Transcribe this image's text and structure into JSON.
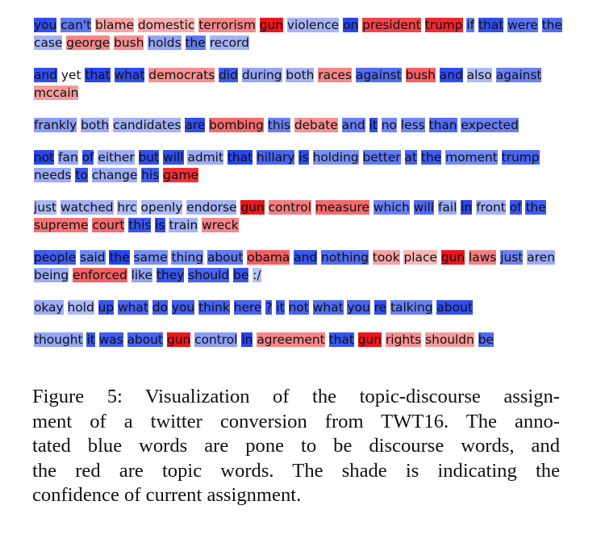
{
  "visualization": {
    "colors": {
      "discourse_strong": "#1f3ff0",
      "discourse_weak": "#c5d0f8",
      "topic_strong": "#f0141b",
      "topic_weak": "#f9d3d2"
    },
    "tweets": [
      {
        "tokens": [
          {
            "t": "you",
            "c": "b",
            "s": 0.9
          },
          {
            "t": "can't",
            "c": "b",
            "s": 0.6
          },
          {
            "t": "blame",
            "c": "r",
            "s": 0.25
          },
          {
            "t": "domestic",
            "c": "r",
            "s": 0.2
          },
          {
            "t": "terrorism",
            "c": "r",
            "s": 0.4
          },
          {
            "t": "gun",
            "c": "r",
            "s": 1.0
          },
          {
            "t": "violence",
            "c": "b",
            "s": 0.2
          },
          {
            "t": "on",
            "c": "b",
            "s": 0.95
          },
          {
            "t": "president",
            "c": "r",
            "s": 0.75
          },
          {
            "t": "trump",
            "c": "r",
            "s": 0.9
          },
          {
            "t": "if",
            "c": "b",
            "s": 0.6
          },
          {
            "t": "that",
            "c": "b",
            "s": 0.9
          },
          {
            "t": "were",
            "c": "b",
            "s": 0.65
          },
          {
            "t": "the",
            "c": "b",
            "s": 0.7
          },
          {
            "t": "case",
            "c": "b",
            "s": 0.2
          },
          {
            "t": "george",
            "c": "r",
            "s": 0.4
          },
          {
            "t": "bush",
            "c": "r",
            "s": 0.35
          },
          {
            "t": "holds",
            "c": "b",
            "s": 0.3
          },
          {
            "t": "the",
            "c": "b",
            "s": 0.6
          },
          {
            "t": "record",
            "c": "b",
            "s": 0.2
          }
        ]
      },
      {
        "tokens": [
          {
            "t": "and",
            "c": "b",
            "s": 0.9
          },
          {
            "t": "yet",
            "c": "n",
            "s": 0.0
          },
          {
            "t": "that",
            "c": "b",
            "s": 0.95
          },
          {
            "t": "what",
            "c": "b",
            "s": 0.9
          },
          {
            "t": "democrats",
            "c": "r",
            "s": 0.35
          },
          {
            "t": "did",
            "c": "b",
            "s": 0.8
          },
          {
            "t": "during",
            "c": "b",
            "s": 0.3
          },
          {
            "t": "both",
            "c": "b",
            "s": 0.2
          },
          {
            "t": "races",
            "c": "r",
            "s": 0.4
          },
          {
            "t": "against",
            "c": "b",
            "s": 0.7
          },
          {
            "t": "bush",
            "c": "r",
            "s": 0.6
          },
          {
            "t": "and",
            "c": "b",
            "s": 0.9
          },
          {
            "t": "also",
            "c": "b",
            "s": 0.15
          },
          {
            "t": "against",
            "c": "b",
            "s": 0.55
          },
          {
            "t": "mccain",
            "c": "r",
            "s": 0.3
          }
        ]
      },
      {
        "tokens": [
          {
            "t": "frankly",
            "c": "b",
            "s": 0.35
          },
          {
            "t": "both",
            "c": "b",
            "s": 0.25
          },
          {
            "t": "candidates",
            "c": "b",
            "s": 0.2
          },
          {
            "t": "are",
            "c": "b",
            "s": 0.9
          },
          {
            "t": "bombing",
            "c": "r",
            "s": 0.55
          },
          {
            "t": "this",
            "c": "b",
            "s": 0.55
          },
          {
            "t": "debate",
            "c": "r",
            "s": 0.35
          },
          {
            "t": "and",
            "c": "b",
            "s": 0.55
          },
          {
            "t": "it",
            "c": "b",
            "s": 0.9
          },
          {
            "t": "no",
            "c": "b",
            "s": 0.5
          },
          {
            "t": "less",
            "c": "b",
            "s": 0.5
          },
          {
            "t": "than",
            "c": "b",
            "s": 0.7
          },
          {
            "t": "expected",
            "c": "b",
            "s": 0.55
          }
        ]
      },
      {
        "tokens": [
          {
            "t": "not",
            "c": "b",
            "s": 0.95
          },
          {
            "t": "fan",
            "c": "b",
            "s": 0.3
          },
          {
            "t": "of",
            "c": "b",
            "s": 0.85
          },
          {
            "t": "either",
            "c": "b",
            "s": 0.25
          },
          {
            "t": "but",
            "c": "b",
            "s": 0.9
          },
          {
            "t": "will",
            "c": "b",
            "s": 0.9
          },
          {
            "t": "admit",
            "c": "b",
            "s": 0.25
          },
          {
            "t": "that",
            "c": "b",
            "s": 0.95
          },
          {
            "t": "hillary",
            "c": "b",
            "s": 0.75
          },
          {
            "t": "is",
            "c": "b",
            "s": 0.9
          },
          {
            "t": "holding",
            "c": "b",
            "s": 0.45
          },
          {
            "t": "better",
            "c": "b",
            "s": 0.6
          },
          {
            "t": "at",
            "c": "b",
            "s": 0.75
          },
          {
            "t": "the",
            "c": "b",
            "s": 0.8
          },
          {
            "t": "moment",
            "c": "b",
            "s": 0.5
          },
          {
            "t": "trump",
            "c": "b",
            "s": 0.75
          },
          {
            "t": "needs",
            "c": "b",
            "s": 0.25
          },
          {
            "t": "to",
            "c": "b",
            "s": 0.85
          },
          {
            "t": "change",
            "c": "b",
            "s": 0.25
          },
          {
            "t": "his",
            "c": "b",
            "s": 0.8
          },
          {
            "t": "game",
            "c": "r",
            "s": 0.85
          }
        ]
      },
      {
        "tokens": [
          {
            "t": "just",
            "c": "b",
            "s": 0.15
          },
          {
            "t": "watched",
            "c": "b",
            "s": 0.2
          },
          {
            "t": "hrc",
            "c": "b",
            "s": 0.15
          },
          {
            "t": "openly",
            "c": "b",
            "s": 0.15
          },
          {
            "t": "endorse",
            "c": "b",
            "s": 0.2
          },
          {
            "t": "gun",
            "c": "r",
            "s": 1.0
          },
          {
            "t": "control",
            "c": "r",
            "s": 0.45
          },
          {
            "t": "measure",
            "c": "r",
            "s": 0.55
          },
          {
            "t": "which",
            "c": "b",
            "s": 0.55
          },
          {
            "t": "will",
            "c": "b",
            "s": 0.7
          },
          {
            "t": "fail",
            "c": "b",
            "s": 0.25
          },
          {
            "t": "in",
            "c": "b",
            "s": 0.95
          },
          {
            "t": "front",
            "c": "b",
            "s": 0.2
          },
          {
            "t": "of",
            "c": "b",
            "s": 0.85
          },
          {
            "t": "the",
            "c": "b",
            "s": 0.8
          },
          {
            "t": "supreme",
            "c": "r",
            "s": 0.5
          },
          {
            "t": "court",
            "c": "r",
            "s": 0.55
          },
          {
            "t": "this",
            "c": "b",
            "s": 0.85
          },
          {
            "t": "is",
            "c": "b",
            "s": 0.9
          },
          {
            "t": "train",
            "c": "b",
            "s": 0.2
          },
          {
            "t": "wreck",
            "c": "r",
            "s": 0.4
          }
        ]
      },
      {
        "tokens": [
          {
            "t": "people",
            "c": "b",
            "s": 0.8
          },
          {
            "t": "said",
            "c": "b",
            "s": 0.5
          },
          {
            "t": "the",
            "c": "b",
            "s": 0.95
          },
          {
            "t": "same",
            "c": "b",
            "s": 0.45
          },
          {
            "t": "thing",
            "c": "b",
            "s": 0.45
          },
          {
            "t": "about",
            "c": "b",
            "s": 0.6
          },
          {
            "t": "obama",
            "c": "r",
            "s": 0.6
          },
          {
            "t": "and",
            "c": "b",
            "s": 0.85
          },
          {
            "t": "nothing",
            "c": "b",
            "s": 0.7
          },
          {
            "t": "took",
            "c": "r",
            "s": 0.25
          },
          {
            "t": "place",
            "c": "r",
            "s": 0.15
          },
          {
            "t": "gun",
            "c": "r",
            "s": 1.0
          },
          {
            "t": "laws",
            "c": "r",
            "s": 0.45
          },
          {
            "t": "just",
            "c": "b",
            "s": 0.55
          },
          {
            "t": "aren",
            "c": "b",
            "s": 0.25
          },
          {
            "t": "being",
            "c": "b",
            "s": 0.25
          },
          {
            "t": "enforced",
            "c": "r",
            "s": 0.6
          },
          {
            "t": "like",
            "c": "b",
            "s": 0.3
          },
          {
            "t": "they",
            "c": "b",
            "s": 0.85
          },
          {
            "t": "should",
            "c": "b",
            "s": 0.75
          },
          {
            "t": "be",
            "c": "b",
            "s": 0.85
          },
          {
            "t": ":/",
            "c": "b",
            "s": 0.1
          }
        ]
      },
      {
        "tokens": [
          {
            "t": "okay",
            "c": "b",
            "s": 0.25
          },
          {
            "t": "hold",
            "c": "b",
            "s": 0.15
          },
          {
            "t": "up",
            "c": "b",
            "s": 0.85
          },
          {
            "t": "what",
            "c": "b",
            "s": 0.75
          },
          {
            "t": "do",
            "c": "b",
            "s": 0.8
          },
          {
            "t": "you",
            "c": "b",
            "s": 0.8
          },
          {
            "t": "think",
            "c": "b",
            "s": 0.75
          },
          {
            "t": "here",
            "c": "b",
            "s": 0.75
          },
          {
            "t": "?",
            "c": "b",
            "s": 0.85
          },
          {
            "t": "it",
            "c": "b",
            "s": 0.8
          },
          {
            "t": "not",
            "c": "b",
            "s": 0.75
          },
          {
            "t": "what",
            "c": "b",
            "s": 0.7
          },
          {
            "t": "you",
            "c": "b",
            "s": 0.75
          },
          {
            "t": "re",
            "c": "b",
            "s": 0.9
          },
          {
            "t": "talking",
            "c": "b",
            "s": 0.55
          },
          {
            "t": "about",
            "c": "b",
            "s": 0.9
          }
        ]
      },
      {
        "tokens": [
          {
            "t": "thought",
            "c": "b",
            "s": 0.3
          },
          {
            "t": "it",
            "c": "b",
            "s": 0.85
          },
          {
            "t": "was",
            "c": "b",
            "s": 0.8
          },
          {
            "t": "about",
            "c": "b",
            "s": 0.75
          },
          {
            "t": "gun",
            "c": "r",
            "s": 1.0
          },
          {
            "t": "control",
            "c": "b",
            "s": 0.35
          },
          {
            "t": "in",
            "c": "b",
            "s": 0.95
          },
          {
            "t": "agreement",
            "c": "r",
            "s": 0.4
          },
          {
            "t": "that",
            "c": "b",
            "s": 0.85
          },
          {
            "t": "gun",
            "c": "r",
            "s": 1.0
          },
          {
            "t": "rights",
            "c": "r",
            "s": 0.35
          },
          {
            "t": "shouldn",
            "c": "r",
            "s": 0.3
          },
          {
            "t": "be",
            "c": "b",
            "s": 0.7
          }
        ]
      }
    ]
  },
  "caption": {
    "lines": [
      "Figure 5:   Visualization of the topic-discourse assign-",
      "ment of a twitter conversion from TWT16.  The anno-",
      "tated blue words are pone to be discourse words, and",
      "the red are topic words.  The shade is indicating the",
      "confidence of current assignment."
    ]
  }
}
